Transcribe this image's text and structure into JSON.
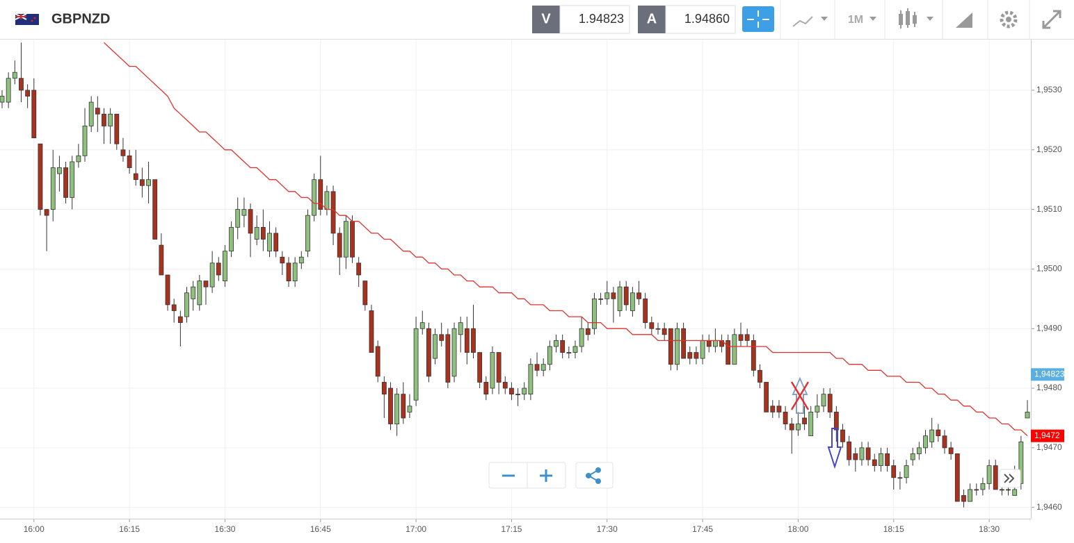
{
  "header": {
    "symbol": "GBPNZD",
    "bid_label": "V",
    "bid": "1.94823",
    "ask_label": "A",
    "ask": "1.94860",
    "timeframe": "1M"
  },
  "chart_data": {
    "type": "candlestick",
    "title": "GBPNZD",
    "categories": [
      null,
      null,
      null,
      null,
      null,
      "16:00",
      null,
      null,
      null,
      null,
      null,
      null,
      null,
      null,
      null,
      null,
      null,
      null,
      null,
      null,
      "16:15",
      null,
      null,
      null,
      null,
      null,
      null,
      null,
      null,
      null,
      null,
      null,
      null,
      null,
      null,
      "16:30",
      null,
      null,
      null,
      null,
      null,
      null,
      null,
      null,
      null,
      null,
      null,
      null,
      null,
      null,
      "16:45",
      null,
      null,
      null,
      null,
      null,
      null,
      null,
      null,
      null,
      null,
      null,
      null,
      null,
      null,
      "17:00",
      null,
      null,
      null,
      null,
      null,
      null,
      null,
      null,
      null,
      null,
      null,
      null,
      null,
      null,
      "17:15",
      null,
      null,
      null,
      null,
      null,
      null,
      null,
      null,
      null,
      null,
      null,
      null,
      null,
      null,
      "17:30",
      null,
      null,
      null,
      null,
      null,
      null,
      null,
      null,
      null,
      null,
      null,
      null,
      null,
      null,
      "17:45",
      null,
      null,
      null,
      null,
      null,
      null,
      null,
      null,
      null,
      null,
      null,
      null,
      null,
      null,
      "18:00",
      null,
      null,
      null,
      null,
      null,
      null,
      null,
      null,
      null,
      null,
      null,
      null,
      null,
      null,
      "18:15",
      null,
      null,
      null,
      null,
      null,
      null,
      null,
      null,
      null,
      null,
      null,
      null,
      null,
      null,
      "18:30",
      null,
      null,
      null,
      null,
      null,
      null
    ],
    "candles": [
      [
        1.9528,
        1.953,
        1.9527,
        1.9529
      ],
      [
        1.9528,
        1.9533,
        1.9527,
        1.9532
      ],
      [
        1.9532,
        1.9535,
        1.9531,
        1.9533
      ],
      [
        1.9532,
        1.9538,
        1.9528,
        1.953
      ],
      [
        1.953,
        1.9531,
        1.9527,
        1.9529
      ],
      [
        1.953,
        1.9532,
        1.9522,
        1.9522
      ],
      [
        1.9521,
        1.9521,
        1.9509,
        1.951
      ],
      [
        1.951,
        1.951,
        1.9503,
        1.9509
      ],
      [
        1.951,
        1.952,
        1.9508,
        1.9517
      ],
      [
        1.9516,
        1.9519,
        1.9513,
        1.9517
      ],
      [
        1.9517,
        1.9518,
        1.9511,
        1.9512
      ],
      [
        1.9512,
        1.9519,
        1.951,
        1.9518
      ],
      [
        1.9518,
        1.9521,
        1.9517,
        1.9519
      ],
      [
        1.9519,
        1.9527,
        1.9518,
        1.9524
      ],
      [
        1.9524,
        1.9529,
        1.9523,
        1.9528
      ],
      [
        1.9527,
        1.9529,
        1.9523,
        1.9526
      ],
      [
        1.9526,
        1.9527,
        1.9521,
        1.9524
      ],
      [
        1.9524,
        1.9527,
        1.9521,
        1.9526
      ],
      [
        1.9526,
        1.9526,
        1.952,
        1.9521
      ],
      [
        1.952,
        1.9522,
        1.9518,
        1.9519
      ],
      [
        1.9519,
        1.952,
        1.9516,
        1.9517
      ],
      [
        1.9516,
        1.952,
        1.9514,
        1.9515
      ],
      [
        1.9515,
        1.9517,
        1.9512,
        1.9514
      ],
      [
        1.9514,
        1.9518,
        1.9511,
        1.9515
      ],
      [
        1.9515,
        1.9515,
        1.9505,
        1.9505
      ],
      [
        1.9504,
        1.9506,
        1.9499,
        1.9499
      ],
      [
        1.9499,
        1.9499,
        1.9493,
        1.9494
      ],
      [
        1.9494,
        1.9495,
        1.9491,
        1.9493
      ],
      [
        1.9492,
        1.9493,
        1.9487,
        1.9491
      ],
      [
        1.9492,
        1.9497,
        1.9491,
        1.9496
      ],
      [
        1.9495,
        1.9498,
        1.9493,
        1.9497
      ],
      [
        1.9494,
        1.9499,
        1.9493,
        1.9498
      ],
      [
        1.9498,
        1.9498,
        1.9494,
        1.9497
      ],
      [
        1.9497,
        1.9503,
        1.9496,
        1.9501
      ],
      [
        1.9501,
        1.9502,
        1.9498,
        1.9499
      ],
      [
        1.9498,
        1.9504,
        1.9497,
        1.9503
      ],
      [
        1.9503,
        1.9508,
        1.9502,
        1.9507
      ],
      [
        1.9507,
        1.9512,
        1.9505,
        1.951
      ],
      [
        1.9509,
        1.9512,
        1.9507,
        1.951
      ],
      [
        1.951,
        1.9511,
        1.9502,
        1.9506
      ],
      [
        1.9505,
        1.9509,
        1.9504,
        1.9507
      ],
      [
        1.9507,
        1.951,
        1.9503,
        1.9505
      ],
      [
        1.9503,
        1.9508,
        1.9502,
        1.9506
      ],
      [
        1.9506,
        1.9507,
        1.9502,
        1.9503
      ],
      [
        1.9502,
        1.9503,
        1.9499,
        1.9501
      ],
      [
        1.9501,
        1.9502,
        1.9497,
        1.9498
      ],
      [
        1.9498,
        1.9502,
        1.9497,
        1.9501
      ],
      [
        1.9501,
        1.9503,
        1.95,
        1.9502
      ],
      [
        1.9503,
        1.951,
        1.9502,
        1.9509
      ],
      [
        1.9509,
        1.9516,
        1.9508,
        1.9515
      ],
      [
        1.9515,
        1.9519,
        1.9509,
        1.951
      ],
      [
        1.951,
        1.9514,
        1.9509,
        1.9513
      ],
      [
        1.9513,
        1.9514,
        1.9504,
        1.9506
      ],
      [
        1.9506,
        1.9507,
        1.9499,
        1.9502
      ],
      [
        1.9502,
        1.9509,
        1.95,
        1.9508
      ],
      [
        1.9508,
        1.9509,
        1.9501,
        1.9502
      ],
      [
        1.9501,
        1.9502,
        1.9497,
        1.9499
      ],
      [
        1.9498,
        1.9498,
        1.9493,
        1.9494
      ],
      [
        1.9493,
        1.9494,
        1.9486,
        1.9486
      ],
      [
        1.9487,
        1.9488,
        1.9481,
        1.9482
      ],
      [
        1.9481,
        1.9482,
        1.9475,
        1.9479
      ],
      [
        1.948,
        1.9481,
        1.9473,
        1.9474
      ],
      [
        1.9474,
        1.948,
        1.9472,
        1.9479
      ],
      [
        1.9479,
        1.9481,
        1.9474,
        1.9475
      ],
      [
        1.9476,
        1.9479,
        1.9475,
        1.9477
      ],
      [
        1.9478,
        1.9492,
        1.9477,
        1.949
      ],
      [
        1.949,
        1.9493,
        1.9489,
        1.9491
      ],
      [
        1.949,
        1.9491,
        1.9481,
        1.9482
      ],
      [
        1.9485,
        1.949,
        1.9484,
        1.9489
      ],
      [
        1.9489,
        1.9491,
        1.9487,
        1.9488
      ],
      [
        1.9489,
        1.949,
        1.948,
        1.9481
      ],
      [
        1.9482,
        1.9491,
        1.9481,
        1.949
      ],
      [
        1.9489,
        1.9492,
        1.9486,
        1.9491
      ],
      [
        1.949,
        1.9492,
        1.9484,
        1.9486
      ],
      [
        1.949,
        1.9494,
        1.9485,
        1.9486
      ],
      [
        1.9486,
        1.9486,
        1.948,
        1.9481
      ],
      [
        1.9481,
        1.9482,
        1.9478,
        1.9479
      ],
      [
        1.948,
        1.9487,
        1.9479,
        1.9486
      ],
      [
        1.9486,
        1.9486,
        1.9479,
        1.9481
      ],
      [
        1.9481,
        1.9482,
        1.9479,
        1.948
      ],
      [
        1.948,
        1.9481,
        1.9478,
        1.9479
      ],
      [
        1.9479,
        1.948,
        1.9477,
        1.9479
      ],
      [
        1.9479,
        1.9481,
        1.9478,
        1.948
      ],
      [
        1.9479,
        1.9485,
        1.9478,
        1.9484
      ],
      [
        1.9484,
        1.9486,
        1.9482,
        1.9483
      ],
      [
        1.9483,
        1.9485,
        1.9482,
        1.9484
      ],
      [
        1.9484,
        1.9488,
        1.9483,
        1.9487
      ],
      [
        1.9487,
        1.9489,
        1.9486,
        1.9488
      ],
      [
        1.9488,
        1.9489,
        1.9485,
        1.9486
      ],
      [
        1.9486,
        1.9487,
        1.9485,
        1.9486
      ],
      [
        1.9486,
        1.9488,
        1.9485,
        1.9487
      ],
      [
        1.9487,
        1.9492,
        1.9486,
        1.949
      ],
      [
        1.949,
        1.9491,
        1.9488,
        1.9489
      ],
      [
        1.949,
        1.9496,
        1.9489,
        1.9495
      ],
      [
        1.9495,
        1.9496,
        1.9494,
        1.9495
      ],
      [
        1.9495,
        1.9498,
        1.9494,
        1.9496
      ],
      [
        1.9496,
        1.9497,
        1.9491,
        1.9495
      ],
      [
        1.9493,
        1.9498,
        1.9492,
        1.9497
      ],
      [
        1.9497,
        1.9498,
        1.9493,
        1.9494
      ],
      [
        1.9493,
        1.9497,
        1.9492,
        1.9496
      ],
      [
        1.9496,
        1.9498,
        1.9494,
        1.9495
      ],
      [
        1.9495,
        1.9496,
        1.949,
        1.9491
      ],
      [
        1.9491,
        1.9492,
        1.9489,
        1.949
      ],
      [
        1.949,
        1.9491,
        1.9489,
        1.949
      ],
      [
        1.949,
        1.9491,
        1.9488,
        1.9489
      ],
      [
        1.949,
        1.949,
        1.9483,
        1.9484
      ],
      [
        1.9484,
        1.9491,
        1.9483,
        1.949
      ],
      [
        1.949,
        1.9491,
        1.9485,
        1.9485
      ],
      [
        1.9486,
        1.9487,
        1.9484,
        1.9485
      ],
      [
        1.9486,
        1.9487,
        1.9484,
        1.9485
      ],
      [
        1.9485,
        1.9489,
        1.9484,
        1.9488
      ],
      [
        1.9488,
        1.9489,
        1.9486,
        1.9487
      ],
      [
        1.9487,
        1.949,
        1.9486,
        1.9488
      ],
      [
        1.9488,
        1.9489,
        1.9486,
        1.9487
      ],
      [
        1.9488,
        1.9489,
        1.9484,
        1.9484
      ],
      [
        1.9484,
        1.949,
        1.9484,
        1.9489
      ],
      [
        1.9489,
        1.9491,
        1.9487,
        1.9488
      ],
      [
        1.9489,
        1.949,
        1.9487,
        1.9488
      ],
      [
        1.9488,
        1.9489,
        1.9482,
        1.9483
      ],
      [
        1.9483,
        1.9484,
        1.948,
        1.9481
      ],
      [
        1.9481,
        1.9481,
        1.9476,
        1.9476
      ],
      [
        1.9477,
        1.9478,
        1.9475,
        1.9476
      ],
      [
        1.9477,
        1.9478,
        1.9475,
        1.9476
      ],
      [
        1.9476,
        1.9477,
        1.9473,
        1.9474
      ],
      [
        1.9474,
        1.9475,
        1.9469,
        1.9473
      ],
      [
        1.9473,
        1.9476,
        1.9472,
        1.9474
      ],
      [
        1.9475,
        1.9477,
        1.9473,
        1.9474
      ],
      [
        1.9472,
        1.9477,
        1.9472,
        1.9476
      ],
      [
        1.9476,
        1.9479,
        1.9475,
        1.9477
      ],
      [
        1.9477,
        1.948,
        1.9476,
        1.9479
      ],
      [
        1.9479,
        1.948,
        1.9475,
        1.9476
      ],
      [
        1.9476,
        1.9477,
        1.9471,
        1.9473
      ],
      [
        1.9473,
        1.9474,
        1.947,
        1.9471
      ],
      [
        1.9471,
        1.9472,
        1.9467,
        1.9468
      ],
      [
        1.9469,
        1.947,
        1.9466,
        1.9468
      ],
      [
        1.9468,
        1.9471,
        1.9467,
        1.947
      ],
      [
        1.947,
        1.9471,
        1.9467,
        1.9468
      ],
      [
        1.9468,
        1.9469,
        1.9466,
        1.9467
      ],
      [
        1.9467,
        1.947,
        1.9466,
        1.9469
      ],
      [
        1.9469,
        1.947,
        1.9466,
        1.9467
      ],
      [
        1.9467,
        1.9468,
        1.9463,
        1.9465
      ],
      [
        1.9465,
        1.9466,
        1.9463,
        1.9465
      ],
      [
        1.9465,
        1.9468,
        1.9464,
        1.9467
      ],
      [
        1.9468,
        1.947,
        1.9467,
        1.9469
      ],
      [
        1.9469,
        1.9471,
        1.9468,
        1.947
      ],
      [
        1.947,
        1.9473,
        1.9469,
        1.9472
      ],
      [
        1.9471,
        1.9475,
        1.947,
        1.9473
      ],
      [
        1.9473,
        1.9474,
        1.9471,
        1.9472
      ],
      [
        1.9472,
        1.9473,
        1.9469,
        1.947
      ],
      [
        1.947,
        1.9471,
        1.9468,
        1.9469
      ],
      [
        1.9469,
        1.9469,
        1.9461,
        1.9461
      ],
      [
        1.9462,
        1.9463,
        1.946,
        1.9461
      ],
      [
        1.9461,
        1.9464,
        1.9461,
        1.9463
      ],
      [
        1.9463,
        1.9464,
        1.9462,
        1.9463
      ],
      [
        1.9463,
        1.9465,
        1.9462,
        1.9464
      ],
      [
        1.9464,
        1.9468,
        1.9463,
        1.9467
      ],
      [
        1.9467,
        1.9468,
        1.9463,
        1.9463
      ],
      [
        1.9463,
        1.9464,
        1.9462,
        1.9463
      ],
      [
        1.9463,
        1.9464,
        1.9462,
        1.9463
      ],
      [
        1.9462,
        1.9467,
        1.9462,
        1.9463
      ],
      [
        1.9464,
        1.9472,
        1.9463,
        1.9471
      ],
      [
        1.9475,
        1.9478,
        1.9475,
        1.9476
      ]
    ],
    "up_color": "#8fc07e",
    "down_color": "#a8321e",
    "ma": [
      null,
      null,
      null,
      null,
      null,
      null,
      null,
      null,
      null,
      null,
      null,
      null,
      null,
      null,
      null,
      null,
      1.9538,
      1.9537,
      1.9536,
      1.9535,
      1.9534,
      1.9534,
      1.9533,
      1.9532,
      1.9531,
      1.953,
      1.9529,
      1.9527,
      1.9526,
      1.9525,
      1.9524,
      1.9523,
      1.9523,
      1.9522,
      1.9521,
      1.952,
      1.952,
      1.9519,
      1.9518,
      1.9517,
      1.9517,
      1.9516,
      1.9515,
      1.9515,
      1.9514,
      1.9513,
      1.9513,
      1.9512,
      1.9512,
      1.9511,
      1.9511,
      1.951,
      1.951,
      1.9509,
      1.9509,
      1.9508,
      1.9508,
      1.9507,
      1.9506,
      1.9506,
      1.9505,
      1.9505,
      1.9504,
      1.9503,
      1.9503,
      1.9502,
      1.9502,
      1.9501,
      1.9501,
      1.95,
      1.95,
      1.9499,
      1.9499,
      1.9498,
      1.9498,
      1.9497,
      1.9497,
      1.9497,
      1.9496,
      1.9496,
      1.9496,
      1.9495,
      1.9495,
      1.9494,
      1.9494,
      1.9494,
      1.9493,
      1.9493,
      1.9493,
      1.9492,
      1.9492,
      1.9492,
      1.9491,
      1.9491,
      1.9491,
      1.949,
      1.949,
      1.949,
      1.949,
      1.9489,
      1.9489,
      1.9489,
      1.9489,
      1.9488,
      1.9488,
      1.9488,
      1.9488,
      1.9488,
      1.9488,
      1.9488,
      1.9488,
      1.9488,
      1.9488,
      1.9488,
      1.9487,
      1.9487,
      1.9487,
      1.9487,
      1.9487,
      1.9487,
      1.9487,
      1.9486,
      1.9486,
      1.9486,
      1.9486,
      1.9486,
      1.9486,
      1.9486,
      1.9486,
      1.9486,
      1.9486,
      1.9485,
      1.9485,
      1.9484,
      1.9484,
      1.9484,
      1.9483,
      1.9483,
      1.9483,
      1.9482,
      1.9482,
      1.9482,
      1.9481,
      1.9481,
      1.9481,
      1.948,
      1.948,
      1.9479,
      1.9479,
      1.9478,
      1.9478,
      1.9477,
      1.9477,
      1.9476,
      1.9476,
      1.9475,
      1.9475,
      1.9474,
      1.9474,
      1.9473,
      1.9473,
      1.9472
    ],
    "ma_color": "#e0312b",
    "ylim": [
      1.94581,
      1.95385
    ],
    "yticks": [
      {
        "value": 1.946,
        "label": "1,9460"
      },
      {
        "value": 1.947,
        "label": "1,9470"
      },
      {
        "value": 1.948,
        "label": "1,9480"
      },
      {
        "value": 1.949,
        "label": "1,9490"
      },
      {
        "value": 1.95,
        "label": "1,9500"
      },
      {
        "value": 1.951,
        "label": "1,9510"
      },
      {
        "value": 1.952,
        "label": "1,9520"
      },
      {
        "value": 1.953,
        "label": "1,9530"
      }
    ],
    "grid": true,
    "price_markers": [
      {
        "value": 1.94823,
        "label": "1,94823",
        "color": "#5aaee0"
      },
      {
        "value": 1.9472,
        "label": "1,9472",
        "color": "#ff0000"
      }
    ]
  }
}
